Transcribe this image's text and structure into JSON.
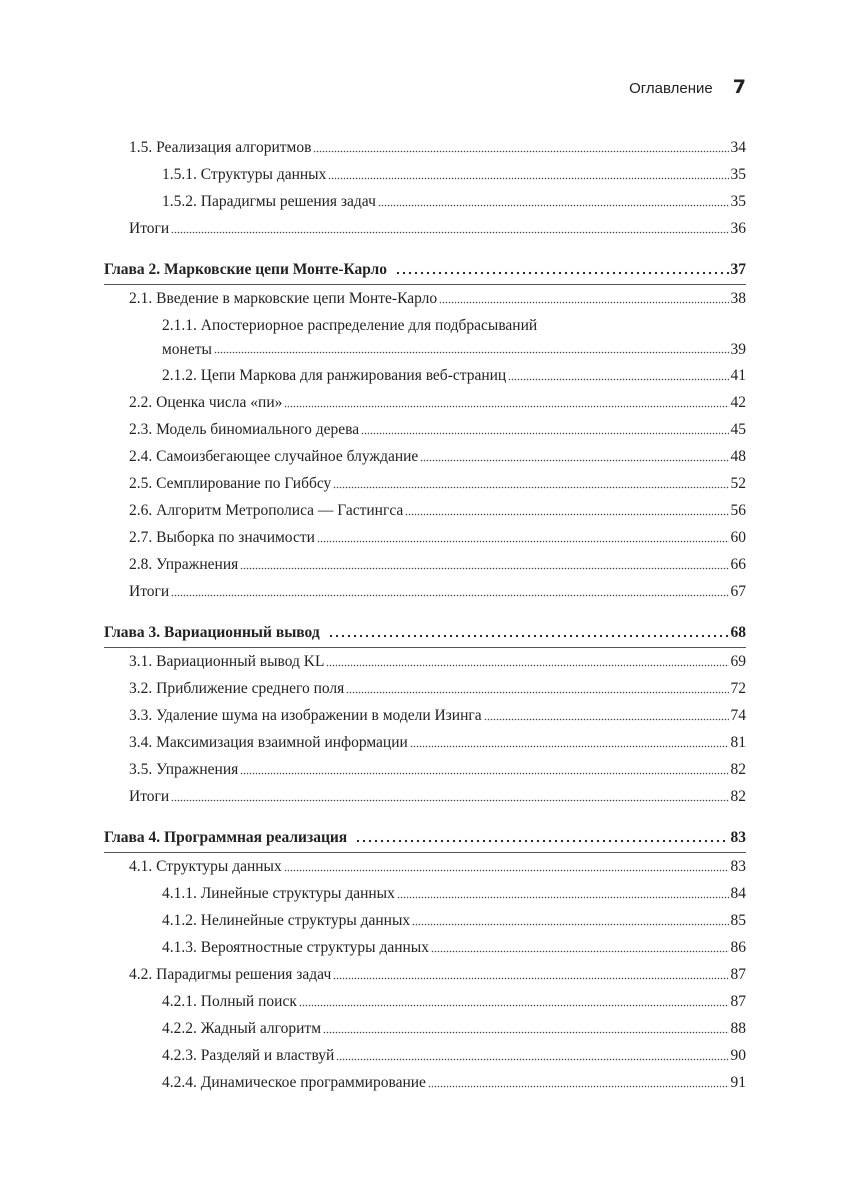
{
  "header": {
    "title": "Оглавление",
    "page_number": "7"
  },
  "entries": [
    {
      "level": 1,
      "label": "1.5. Реализация алгоритмов",
      "page": "34"
    },
    {
      "level": 2,
      "label": "1.5.1. Структуры данных",
      "page": "35"
    },
    {
      "level": 2,
      "label": "1.5.2. Парадигмы решения задач",
      "page": "35"
    },
    {
      "level": 1,
      "label": "Итоги",
      "page": "36"
    },
    {
      "level": 0,
      "label": "Глава 2. Марковские цепи Монте-Карло",
      "page": "37"
    },
    {
      "level": 1,
      "label": "2.1. Введение в марковские цепи Монте-Карло",
      "page": "38"
    },
    {
      "level": 2,
      "label_line1": "2.1.1. Апостериорное распределение для подбрасываний",
      "label": "монеты",
      "page": "39"
    },
    {
      "level": 2,
      "label": "2.1.2. Цепи Маркова для ранжирования веб-страниц",
      "page": "41"
    },
    {
      "level": 1,
      "label": "2.2. Оценка числа «пи»",
      "page": "42"
    },
    {
      "level": 1,
      "label": "2.3. Модель биномиального дерева",
      "page": "45"
    },
    {
      "level": 1,
      "label": "2.4. Самоизбегающее случайное блуждание",
      "page": "48"
    },
    {
      "level": 1,
      "label": "2.5. Семплирование по Гиббсу",
      "page": "52"
    },
    {
      "level": 1,
      "label": "2.6. Алгоритм Метрополиса — Гастингса",
      "page": "56"
    },
    {
      "level": 1,
      "label": "2.7. Выборка по значимости",
      "page": "60"
    },
    {
      "level": 1,
      "label": "2.8. Упражнения",
      "page": "66"
    },
    {
      "level": 1,
      "label": "Итоги",
      "page": "67"
    },
    {
      "level": 0,
      "label": "Глава 3. Вариационный вывод",
      "page": "68"
    },
    {
      "level": 1,
      "label": "3.1. Вариационный вывод KL",
      "page": "69"
    },
    {
      "level": 1,
      "label": "3.2. Приближение среднего поля",
      "page": "72"
    },
    {
      "level": 1,
      "label": "3.3. Удаление шума на изображении в модели Изинга",
      "page": "74"
    },
    {
      "level": 1,
      "label": "3.4. Максимизация взаимной информации",
      "page": "81"
    },
    {
      "level": 1,
      "label": "3.5. Упражнения",
      "page": "82"
    },
    {
      "level": 1,
      "label": "Итоги",
      "page": "82"
    },
    {
      "level": 0,
      "label": "Глава 4. Программная реализация",
      "page": "83"
    },
    {
      "level": 1,
      "label": "4.1. Структуры данных",
      "page": "83"
    },
    {
      "level": 2,
      "label": "4.1.1. Линейные структуры данных",
      "page": "84"
    },
    {
      "level": 2,
      "label": "4.1.2. Нелинейные структуры данных",
      "page": "85"
    },
    {
      "level": 2,
      "label": "4.1.3. Вероятностные структуры данных",
      "page": "86"
    },
    {
      "level": 1,
      "label": "4.2. Парадигмы решения задач",
      "page": "87"
    },
    {
      "level": 2,
      "label": "4.2.1. Полный поиск",
      "page": "87"
    },
    {
      "level": 2,
      "label": "4.2.2. Жадный алгоритм",
      "page": "88"
    },
    {
      "level": 2,
      "label": "4.2.3. Разделяй и властвуй",
      "page": "90"
    },
    {
      "level": 2,
      "label": "4.2.4. Динамическое программирование",
      "page": "91"
    }
  ]
}
